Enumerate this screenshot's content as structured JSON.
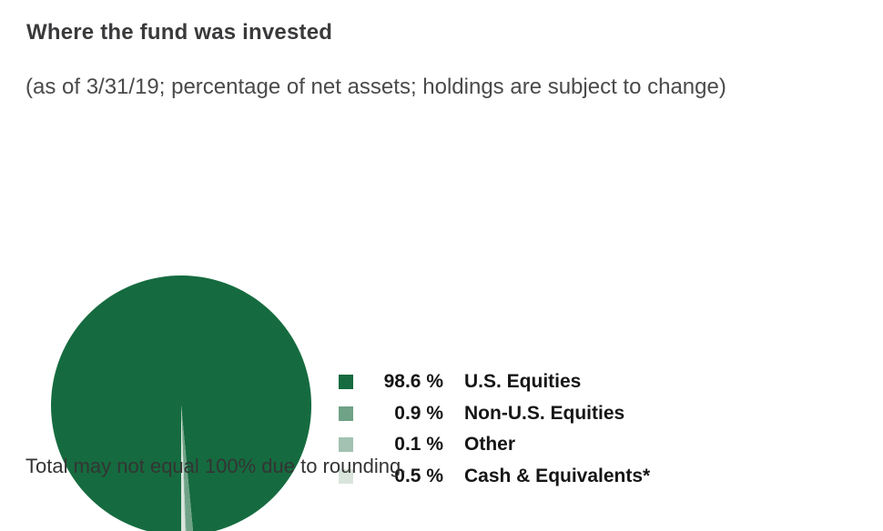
{
  "header": {
    "title": "Where the fund was invested",
    "subtitle": "(as of 3/31/19; percentage of net assets; holdings are subject to change)"
  },
  "chart_data": {
    "type": "pie",
    "title": "Where the fund was invested",
    "categories": [
      "U.S. Equities",
      "Non-U.S. Equities",
      "Other",
      "Cash & Equivalents*"
    ],
    "values": [
      98.6,
      0.9,
      0.1,
      0.5
    ],
    "value_labels": [
      "98.6 %",
      "0.9 %",
      "0.1 %",
      "0.5 %"
    ],
    "colors": [
      "#156b3f",
      "#6fa287",
      "#a3c2b1",
      "#d9e5dc"
    ],
    "start_angle_deg": 270,
    "direction": "clockwise",
    "legend_position": "right"
  },
  "footnote": "Total may not equal 100% due to rounding."
}
